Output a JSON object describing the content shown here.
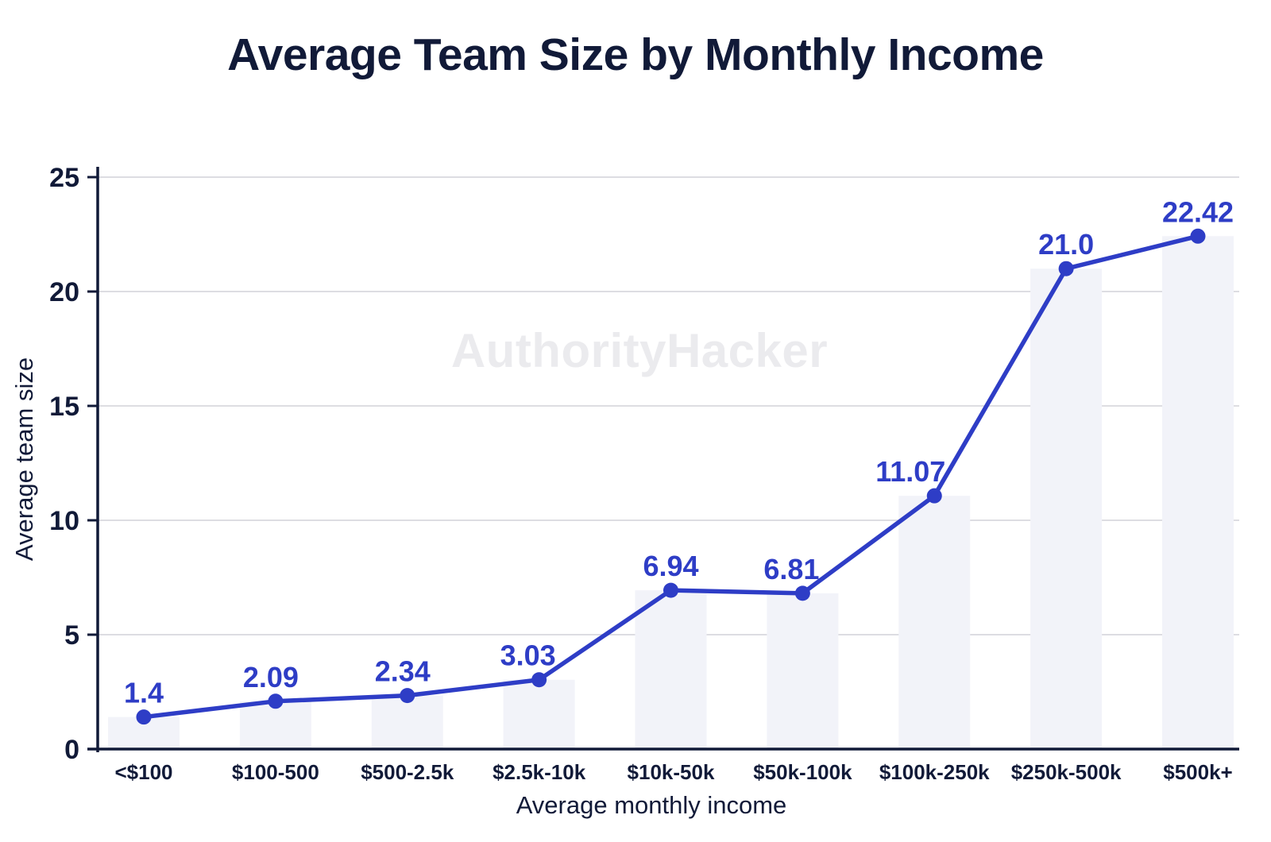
{
  "chart_data": {
    "type": "line",
    "title": "Average Team Size by Monthly Income",
    "xlabel": "Average monthly income",
    "ylabel": "Average team size",
    "watermark": "AuthorityHacker",
    "categories": [
      "<$100",
      "$100-500",
      "$500-2.5k",
      "$2.5k-10k",
      "$10k-50k",
      "$50k-100k",
      "$100k-250k",
      "$250k-500k",
      "$500k+"
    ],
    "values": [
      1.4,
      2.09,
      2.34,
      3.03,
      6.94,
      6.81,
      11.07,
      21.0,
      22.42
    ],
    "value_labels": [
      "1.4",
      "2.09",
      "2.34",
      "3.03",
      "6.94",
      "6.81",
      "11.07",
      "21.0",
      "22.42"
    ],
    "ylim": [
      0,
      25
    ],
    "yticks": [
      0,
      5,
      10,
      15,
      20,
      25
    ],
    "grid": "horizontal",
    "legend": "none",
    "background_bars": true,
    "label_dx": [
      0,
      -6,
      -6,
      -14,
      0,
      -14,
      -30,
      0,
      0
    ],
    "colors": {
      "line": "#2e3dc6",
      "point": "#2e3dc6",
      "value_label": "#2e3dc6",
      "bar_fill": "#f2f3f9",
      "grid": "#dddde2",
      "axis": "#111a38",
      "text": "#111a38",
      "title": "#111a38",
      "watermark": "#ebebee",
      "background": "#ffffff"
    }
  }
}
